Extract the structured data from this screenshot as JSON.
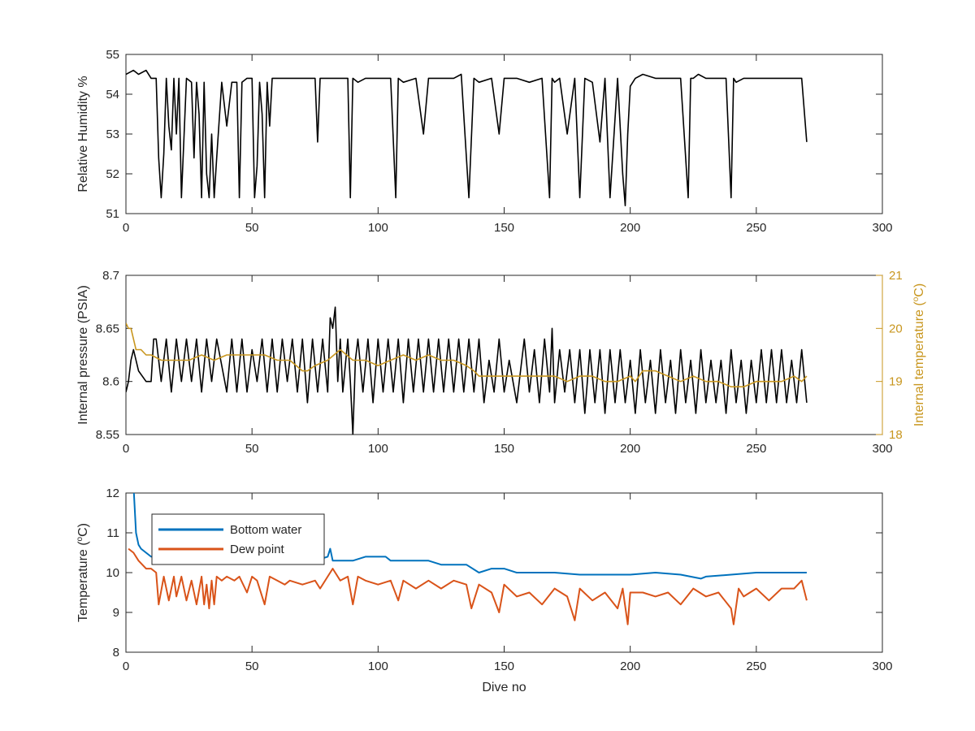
{
  "chart_data": [
    {
      "type": "line",
      "xlabel": "",
      "ylabel": "Relative Humidity %",
      "xlim": [
        0,
        300
      ],
      "ylim": [
        51,
        55
      ],
      "xticks": [
        "0",
        "50",
        "100",
        "150",
        "200",
        "250",
        "300"
      ],
      "yticks": [
        "51",
        "52",
        "53",
        "54",
        "55"
      ],
      "grid": false,
      "series": [
        {
          "color": "#000000",
          "x": [
            0,
            3,
            5,
            8,
            10,
            12,
            13,
            14,
            15,
            16,
            17,
            18,
            19,
            20,
            21,
            22,
            24,
            26,
            27,
            28,
            29,
            30,
            31,
            32,
            33,
            34,
            35,
            36,
            38,
            40,
            42,
            44,
            45,
            46,
            48,
            50,
            51,
            52,
            53,
            54,
            55,
            56,
            57,
            58,
            60,
            62,
            65,
            70,
            75,
            76,
            77,
            80,
            84,
            86,
            88,
            89,
            90,
            92,
            95,
            100,
            105,
            107,
            108,
            110,
            115,
            118,
            120,
            125,
            130,
            133,
            136,
            138,
            140,
            145,
            148,
            150,
            152,
            155,
            160,
            165,
            168,
            169,
            170,
            172,
            175,
            178,
            180,
            182,
            185,
            188,
            190,
            192,
            195,
            197,
            198,
            199,
            200,
            202,
            205,
            210,
            215,
            220,
            223,
            224,
            225,
            227,
            230,
            235,
            238,
            240,
            241,
            242,
            245,
            250,
            255,
            260,
            265,
            268,
            270
          ],
          "y": [
            54.5,
            54.6,
            54.5,
            54.6,
            54.4,
            54.4,
            52.4,
            51.4,
            52.5,
            54.4,
            53.2,
            52.6,
            54.4,
            53.0,
            54.4,
            51.4,
            54.4,
            54.3,
            52.4,
            54.3,
            53.5,
            51.4,
            54.3,
            52.0,
            51.4,
            53.0,
            51.4,
            52.4,
            54.3,
            53.2,
            54.3,
            54.3,
            51.4,
            54.3,
            54.4,
            54.4,
            51.4,
            52.2,
            54.3,
            53.5,
            51.4,
            54.3,
            53.2,
            54.4,
            54.4,
            54.4,
            54.4,
            54.4,
            54.4,
            52.8,
            54.4,
            54.4,
            54.4,
            54.4,
            54.4,
            51.4,
            54.4,
            54.3,
            54.4,
            54.4,
            54.4,
            51.4,
            54.4,
            54.3,
            54.4,
            53.0,
            54.4,
            54.4,
            54.4,
            54.5,
            51.4,
            54.4,
            54.3,
            54.4,
            53.0,
            54.4,
            54.4,
            54.4,
            54.3,
            54.4,
            51.4,
            54.4,
            54.3,
            54.4,
            53.0,
            54.4,
            51.4,
            54.4,
            54.3,
            52.8,
            54.4,
            51.4,
            54.4,
            52.0,
            51.2,
            53.0,
            54.2,
            54.4,
            54.5,
            54.4,
            54.4,
            54.4,
            51.4,
            54.4,
            54.4,
            54.5,
            54.4,
            54.4,
            54.4,
            51.4,
            54.4,
            54.3,
            54.4,
            54.4,
            54.4,
            54.4,
            54.4,
            54.4,
            52.8
          ]
        }
      ]
    },
    {
      "type": "line",
      "xlabel": "",
      "ylabel": "Internal pressure (PSIA)",
      "y2label": "Internal temperature (°C)",
      "xlim": [
        0,
        300
      ],
      "ylim": [
        8.55,
        8.7
      ],
      "y2lim": [
        18,
        21
      ],
      "xticks": [
        "0",
        "50",
        "100",
        "150",
        "200",
        "250",
        "300"
      ],
      "yticks": [
        "8.55",
        "8.6",
        "8.65",
        "8.7"
      ],
      "y2ticks": [
        "18",
        "19",
        "20",
        "21"
      ],
      "grid": false,
      "series": [
        {
          "color": "#000000",
          "x": [
            0,
            1,
            2,
            3,
            5,
            8,
            10,
            11,
            12,
            14,
            16,
            18,
            20,
            22,
            24,
            26,
            28,
            30,
            32,
            34,
            36,
            40,
            42,
            44,
            46,
            48,
            50,
            52,
            54,
            56,
            58,
            60,
            62,
            64,
            66,
            68,
            70,
            72,
            74,
            76,
            78,
            80,
            81,
            82,
            83,
            84,
            85,
            86,
            88,
            89,
            90,
            91,
            92,
            94,
            96,
            98,
            100,
            102,
            104,
            106,
            108,
            110,
            112,
            114,
            116,
            118,
            120,
            122,
            124,
            126,
            128,
            130,
            132,
            134,
            136,
            138,
            140,
            142,
            144,
            146,
            148,
            150,
            152,
            155,
            158,
            160,
            162,
            164,
            166,
            168,
            169,
            170,
            172,
            174,
            176,
            178,
            180,
            182,
            184,
            186,
            188,
            190,
            192,
            194,
            196,
            198,
            200,
            202,
            204,
            206,
            208,
            210,
            212,
            214,
            216,
            218,
            220,
            222,
            224,
            226,
            228,
            230,
            232,
            234,
            236,
            238,
            240,
            242,
            244,
            246,
            248,
            250,
            252,
            254,
            256,
            258,
            260,
            262,
            264,
            266,
            268,
            270
          ],
          "y": [
            8.59,
            8.6,
            8.62,
            8.63,
            8.61,
            8.6,
            8.6,
            8.64,
            8.64,
            8.6,
            8.64,
            8.59,
            8.64,
            8.6,
            8.64,
            8.6,
            8.64,
            8.59,
            8.64,
            8.6,
            8.64,
            8.59,
            8.64,
            8.59,
            8.64,
            8.59,
            8.63,
            8.6,
            8.64,
            8.59,
            8.64,
            8.59,
            8.64,
            8.6,
            8.64,
            8.59,
            8.64,
            8.58,
            8.64,
            8.59,
            8.64,
            8.59,
            8.66,
            8.65,
            8.67,
            8.6,
            8.64,
            8.59,
            8.64,
            8.6,
            8.55,
            8.62,
            8.64,
            8.59,
            8.64,
            8.58,
            8.64,
            8.59,
            8.64,
            8.59,
            8.64,
            8.58,
            8.64,
            8.59,
            8.64,
            8.59,
            8.64,
            8.59,
            8.64,
            8.59,
            8.64,
            8.59,
            8.64,
            8.59,
            8.64,
            8.59,
            8.64,
            8.58,
            8.62,
            8.59,
            8.64,
            8.59,
            8.62,
            8.58,
            8.64,
            8.59,
            8.63,
            8.58,
            8.64,
            8.59,
            8.65,
            8.58,
            8.63,
            8.59,
            8.63,
            8.58,
            8.63,
            8.57,
            8.63,
            8.58,
            8.63,
            8.57,
            8.63,
            8.58,
            8.63,
            8.58,
            8.62,
            8.57,
            8.63,
            8.58,
            8.62,
            8.57,
            8.63,
            8.58,
            8.62,
            8.57,
            8.63,
            8.58,
            8.62,
            8.57,
            8.63,
            8.58,
            8.62,
            8.58,
            8.62,
            8.57,
            8.63,
            8.58,
            8.62,
            8.57,
            8.62,
            8.58,
            8.63,
            8.58,
            8.63,
            8.58,
            8.63,
            8.58,
            8.62,
            8.58,
            8.63,
            8.58
          ]
        },
        {
          "color": "#c8961e",
          "axis": "right",
          "x": [
            0,
            1,
            2,
            3,
            4,
            6,
            8,
            10,
            14,
            20,
            25,
            30,
            35,
            40,
            45,
            50,
            55,
            60,
            65,
            70,
            72,
            75,
            80,
            85,
            90,
            95,
            100,
            105,
            110,
            115,
            120,
            125,
            130,
            135,
            138,
            140,
            145,
            150,
            155,
            160,
            165,
            170,
            175,
            180,
            185,
            190,
            195,
            200,
            202,
            205,
            210,
            215,
            220,
            225,
            230,
            235,
            240,
            245,
            250,
            255,
            260,
            265,
            268,
            270
          ],
          "y": [
            20.1,
            20.0,
            20.0,
            19.8,
            19.6,
            19.6,
            19.5,
            19.5,
            19.4,
            19.4,
            19.4,
            19.5,
            19.4,
            19.5,
            19.5,
            19.5,
            19.5,
            19.4,
            19.4,
            19.2,
            19.2,
            19.3,
            19.4,
            19.6,
            19.4,
            19.4,
            19.3,
            19.4,
            19.5,
            19.4,
            19.5,
            19.4,
            19.4,
            19.3,
            19.2,
            19.1,
            19.1,
            19.1,
            19.1,
            19.1,
            19.1,
            19.1,
            19.0,
            19.1,
            19.1,
            19.0,
            19.0,
            19.1,
            19.0,
            19.2,
            19.2,
            19.1,
            19.0,
            19.1,
            19.0,
            19.0,
            18.9,
            18.9,
            19.0,
            19.0,
            19.0,
            19.1,
            19.0,
            19.1
          ]
        }
      ]
    },
    {
      "type": "line",
      "xlabel": "Dive no",
      "ylabel": "Temperature (°C)",
      "xlim": [
        0,
        300
      ],
      "ylim": [
        8,
        12
      ],
      "xticks": [
        "0",
        "50",
        "100",
        "150",
        "200",
        "250",
        "300"
      ],
      "yticks": [
        "8",
        "9",
        "10",
        "11",
        "12"
      ],
      "grid": false,
      "legend_position": "top-left",
      "series": [
        {
          "name": "Bottom water",
          "color": "#0072bd",
          "x": [
            3,
            4,
            5,
            6,
            8,
            10,
            15,
            20,
            30,
            40,
            50,
            60,
            70,
            75,
            80,
            81,
            82,
            85,
            90,
            95,
            100,
            103,
            105,
            110,
            115,
            120,
            125,
            130,
            135,
            140,
            145,
            150,
            155,
            160,
            170,
            180,
            190,
            200,
            210,
            220,
            228,
            230,
            240,
            250,
            260,
            270
          ],
          "y": [
            12.2,
            11.0,
            10.7,
            10.6,
            10.5,
            10.4,
            10.4,
            10.3,
            10.3,
            10.3,
            10.3,
            10.3,
            10.3,
            10.3,
            10.4,
            10.6,
            10.3,
            10.3,
            10.3,
            10.4,
            10.4,
            10.4,
            10.3,
            10.3,
            10.3,
            10.3,
            10.2,
            10.2,
            10.2,
            10.0,
            10.1,
            10.1,
            10.0,
            10.0,
            10.0,
            9.95,
            9.95,
            9.95,
            10.0,
            9.95,
            9.85,
            9.9,
            9.95,
            10.0,
            10.0,
            10.0
          ]
        },
        {
          "name": "Dew point",
          "color": "#d95319",
          "x": [
            1,
            3,
            5,
            8,
            10,
            12,
            13,
            15,
            17,
            19,
            20,
            22,
            24,
            26,
            28,
            30,
            31,
            32,
            33,
            34,
            35,
            36,
            38,
            40,
            43,
            45,
            48,
            50,
            52,
            55,
            57,
            60,
            63,
            65,
            70,
            75,
            77,
            80,
            82,
            85,
            88,
            90,
            92,
            95,
            100,
            105,
            108,
            110,
            115,
            120,
            125,
            130,
            135,
            137,
            140,
            145,
            148,
            150,
            155,
            160,
            165,
            170,
            175,
            178,
            180,
            185,
            190,
            195,
            197,
            199,
            200,
            205,
            210,
            215,
            220,
            225,
            230,
            235,
            240,
            241,
            243,
            245,
            250,
            255,
            260,
            265,
            268,
            270
          ],
          "y": [
            10.6,
            10.5,
            10.3,
            10.1,
            10.1,
            10.0,
            9.2,
            9.9,
            9.3,
            9.9,
            9.4,
            9.9,
            9.3,
            9.8,
            9.2,
            9.9,
            9.2,
            9.7,
            9.1,
            9.8,
            9.2,
            9.9,
            9.8,
            9.9,
            9.8,
            9.9,
            9.5,
            9.9,
            9.8,
            9.2,
            9.9,
            9.8,
            9.7,
            9.8,
            9.7,
            9.8,
            9.6,
            9.9,
            10.1,
            9.8,
            9.9,
            9.2,
            9.9,
            9.8,
            9.7,
            9.8,
            9.3,
            9.8,
            9.6,
            9.8,
            9.6,
            9.8,
            9.7,
            9.1,
            9.7,
            9.5,
            9.0,
            9.7,
            9.4,
            9.5,
            9.2,
            9.6,
            9.4,
            8.8,
            9.6,
            9.3,
            9.5,
            9.1,
            9.6,
            8.7,
            9.5,
            9.5,
            9.4,
            9.5,
            9.2,
            9.6,
            9.4,
            9.5,
            9.1,
            8.7,
            9.6,
            9.4,
            9.6,
            9.3,
            9.6,
            9.6,
            9.8,
            9.3
          ]
        }
      ]
    }
  ]
}
